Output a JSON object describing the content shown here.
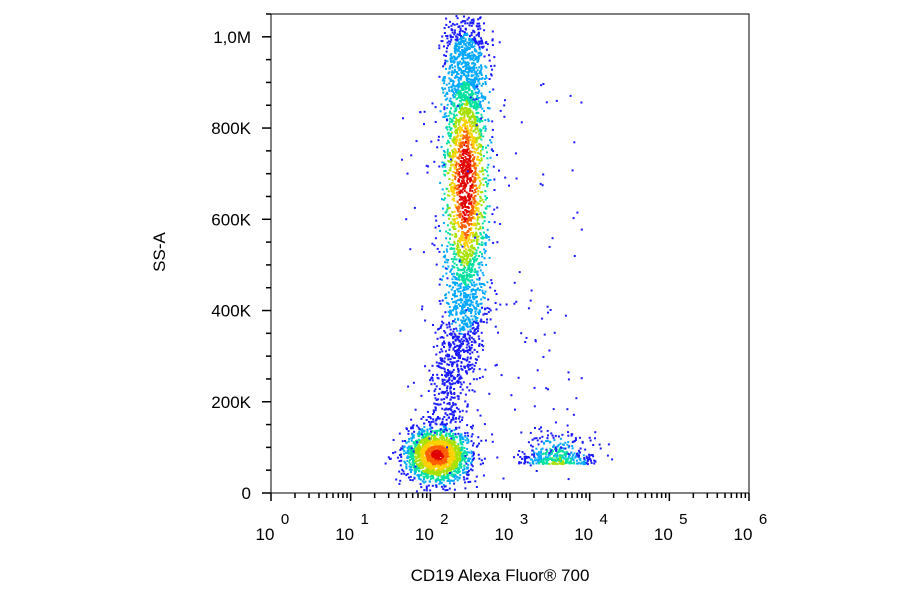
{
  "chart_data": {
    "type": "scatter",
    "subtype": "flow-cytometry-density-dot-plot",
    "xlabel": "CD19 Alexa Fluor® 700",
    "ylabel": "SS-A",
    "x_scale": "log",
    "xlim": [
      1,
      1000000
    ],
    "ylim": [
      0,
      1050000
    ],
    "x_ticks": [
      {
        "value": 1,
        "base": "10",
        "exp": "0"
      },
      {
        "value": 10,
        "base": "10",
        "exp": "1"
      },
      {
        "value": 100,
        "base": "10",
        "exp": "2"
      },
      {
        "value": 1000,
        "base": "10",
        "exp": "3"
      },
      {
        "value": 10000,
        "base": "10",
        "exp": "4"
      },
      {
        "value": 100000,
        "base": "10",
        "exp": "5"
      },
      {
        "value": 1000000,
        "base": "10",
        "exp": "6"
      }
    ],
    "y_ticks": [
      {
        "value": 0,
        "label": "0"
      },
      {
        "value": 200000,
        "label": "200K"
      },
      {
        "value": 400000,
        "label": "400K"
      },
      {
        "value": 600000,
        "label": "600K"
      },
      {
        "value": 800000,
        "label": "800K"
      },
      {
        "value": 1000000,
        "label": "1,0M"
      }
    ],
    "grid": false,
    "legend": "none",
    "colormap": [
      "#1a1aff",
      "#00a8ff",
      "#00e0a0",
      "#a8e000",
      "#ffd000",
      "#ff6000",
      "#e00000"
    ],
    "populations": [
      {
        "center_x": 120,
        "center_y": 85000,
        "spread_log10": 0.2,
        "spread_y": 30000,
        "relative_density": "high"
      },
      {
        "center_x": 270,
        "center_y": 650000,
        "spread_log10": 0.14,
        "spread_y": 260000,
        "relative_density": "high"
      },
      {
        "center_x": 3800,
        "center_y": 65000,
        "spread_log10": 0.22,
        "spread_y": 25000,
        "relative_density": "low"
      }
    ]
  }
}
